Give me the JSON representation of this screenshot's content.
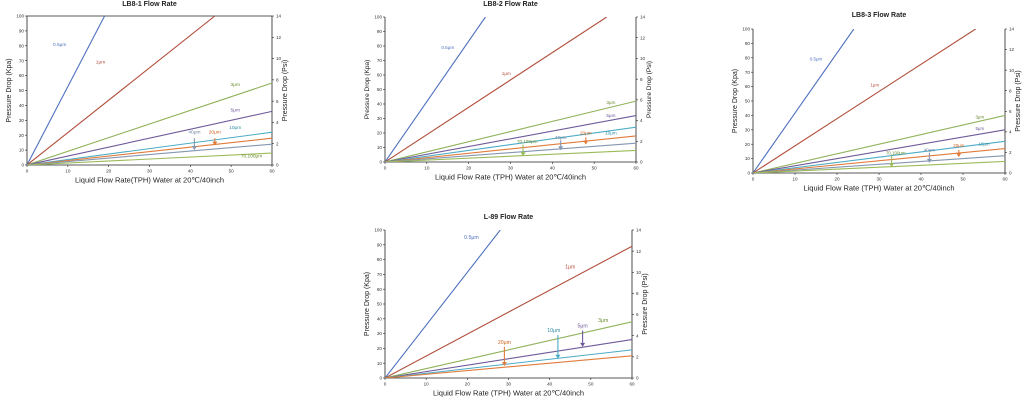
{
  "chart_data": [
    {
      "type": "line",
      "title": "LB8-1 Flow Rate",
      "xlabel": "Liquid Flow Rate(TPH) Water at 20℃/40inch",
      "ylabel": "Pressure Drop (Kpa)",
      "y2label": "Pressure Drop (Psi)",
      "xlim": [
        0,
        60
      ],
      "ylim": [
        0,
        100
      ],
      "y2lim": [
        0,
        14
      ],
      "xticks": [
        "0",
        "10",
        "20",
        "30",
        "40",
        "50",
        "60"
      ],
      "yticks": [
        "0",
        "10",
        "20",
        "30",
        "40",
        "50",
        "60",
        "70",
        "80",
        "90",
        "100"
      ],
      "y2ticks": [
        "0",
        "2",
        "4",
        "6",
        "8",
        "10",
        "12",
        "14"
      ],
      "grid": false,
      "series": [
        {
          "name": "0.5μm",
          "color": "#4f71be",
          "x": [
            0,
            19
          ],
          "y": [
            0,
            100
          ]
        },
        {
          "name": "1μm",
          "color": "#b14e3c",
          "x": [
            0,
            46
          ],
          "y": [
            0,
            100
          ]
        },
        {
          "name": "3μm",
          "color": "#90b25a",
          "x": [
            0,
            60
          ],
          "y": [
            0,
            55
          ]
        },
        {
          "name": "5μm",
          "color": "#6e5a99",
          "x": [
            0,
            60
          ],
          "y": [
            0,
            36
          ]
        },
        {
          "name": "10μm",
          "color": "#4bacc6",
          "x": [
            0,
            60
          ],
          "y": [
            0,
            22
          ]
        },
        {
          "name": "20μm",
          "color": "#e07b39",
          "x": [
            0,
            60
          ],
          "y": [
            0,
            18
          ]
        },
        {
          "name": "40μm",
          "color": "#8497b0",
          "x": [
            0,
            60
          ],
          "y": [
            0,
            14
          ]
        },
        {
          "name": "70,100μm",
          "color": "#9bbb59",
          "x": [
            0,
            60
          ],
          "y": [
            0,
            8
          ]
        }
      ],
      "annotations": [
        {
          "text": "0.5μm",
          "color": "#4f71be",
          "x": 8,
          "y": 80
        },
        {
          "text": "1μm",
          "color": "#b14e3c",
          "x": 18,
          "y": 68
        },
        {
          "text": "3μm",
          "color": "#6a8c2e",
          "x": 51,
          "y": 53
        },
        {
          "text": "5μm",
          "color": "#6e5a99",
          "x": 51,
          "y": 36
        },
        {
          "text": "10μm",
          "color": "#2d8aa5",
          "x": 51,
          "y": 24
        },
        {
          "text": "20μm",
          "color": "#d0601c",
          "x": 46,
          "y": 21
        },
        {
          "text": "40μm",
          "color": "#6b7f9e",
          "x": 41,
          "y": 21
        },
        {
          "text": "70,100μm",
          "color": "#6a8c2e",
          "x": 55,
          "y": 5
        }
      ],
      "arrows": [
        {
          "color": "#8497b0",
          "x": 41,
          "y_from": 18,
          "y_to": 10
        },
        {
          "color": "#e07b39",
          "x": 46,
          "y_from": 18,
          "y_to": 13
        }
      ]
    },
    {
      "type": "line",
      "title": "LB8-2 Flow Rate",
      "xlabel": "Liquid Flow Rate (TPH) Water at 20℃/40inch",
      "ylabel": "Pressure Drop (Kpa)",
      "y2label": "Pressure Drop (Psi)",
      "xlim": [
        0,
        60
      ],
      "ylim": [
        0,
        100
      ],
      "y2lim": [
        0,
        14
      ],
      "xticks": [
        "0",
        "10",
        "20",
        "30",
        "40",
        "50",
        "60"
      ],
      "yticks": [
        "0",
        "10",
        "20",
        "30",
        "40",
        "50",
        "60",
        "70",
        "80",
        "90",
        "100"
      ],
      "y2ticks": [
        "0",
        "2",
        "4",
        "6",
        "8",
        "10",
        "12",
        "14"
      ],
      "grid": false,
      "series": [
        {
          "name": "0.5μm",
          "color": "#4f71be",
          "x": [
            0,
            24
          ],
          "y": [
            0,
            100
          ]
        },
        {
          "name": "1μm",
          "color": "#b14e3c",
          "x": [
            0,
            53
          ],
          "y": [
            0,
            100
          ]
        },
        {
          "name": "3μm",
          "color": "#90b25a",
          "x": [
            0,
            60
          ],
          "y": [
            0,
            42
          ]
        },
        {
          "name": "5μm",
          "color": "#6e5a99",
          "x": [
            0,
            60
          ],
          "y": [
            0,
            32
          ]
        },
        {
          "name": "10μm",
          "color": "#4bacc6",
          "x": [
            0,
            60
          ],
          "y": [
            0,
            24
          ]
        },
        {
          "name": "20μm",
          "color": "#e07b39",
          "x": [
            0,
            60
          ],
          "y": [
            0,
            18
          ]
        },
        {
          "name": "40μm",
          "color": "#8497b0",
          "x": [
            0,
            60
          ],
          "y": [
            0,
            13
          ]
        },
        {
          "name": "70,100μm",
          "color": "#9bbb59",
          "x": [
            0,
            60
          ],
          "y": [
            0,
            8
          ]
        }
      ],
      "annotations": [
        {
          "text": "0.5μm",
          "color": "#4f71be",
          "x": 15,
          "y": 78
        },
        {
          "text": "1μm",
          "color": "#b14e3c",
          "x": 29,
          "y": 60
        },
        {
          "text": "3μm",
          "color": "#6a8c2e",
          "x": 54,
          "y": 40
        },
        {
          "text": "5μm",
          "color": "#6e5a99",
          "x": 54,
          "y": 31
        },
        {
          "text": "10μm",
          "color": "#2d8aa5",
          "x": 54,
          "y": 19
        },
        {
          "text": "20μm",
          "color": "#d0601c",
          "x": 48,
          "y": 19
        },
        {
          "text": "40μm",
          "color": "#6b7f9e",
          "x": 42,
          "y": 16
        },
        {
          "text": "70,100μm",
          "color": "#6a8c2e",
          "x": 34,
          "y": 13
        }
      ],
      "arrows": [
        {
          "color": "#8497b0",
          "x": 42,
          "y_from": 15,
          "y_to": 8
        },
        {
          "color": "#e07b39",
          "x": 48,
          "y_from": 17,
          "y_to": 12
        },
        {
          "color": "#9bbb59",
          "x": 33,
          "y_from": 12,
          "y_to": 4
        }
      ]
    },
    {
      "type": "line",
      "title": "LB8-3 Flow Rate",
      "xlabel": "Liquid Flow Rate (TPH) Water at 20℃/40inch",
      "ylabel": "Pressure Drop (Kpa)",
      "y2label": "Pressure Drop (Psi)",
      "xlim": [
        0,
        60
      ],
      "ylim": [
        0,
        100
      ],
      "y2lim": [
        0,
        14
      ],
      "xticks": [
        "0",
        "10",
        "20",
        "30",
        "40",
        "50",
        "60"
      ],
      "yticks": [
        "0",
        "10",
        "20",
        "30",
        "40",
        "50",
        "60",
        "70",
        "80",
        "90",
        "100"
      ],
      "y2ticks": [
        "0",
        "2",
        "4",
        "6",
        "8",
        "10",
        "12",
        "14"
      ],
      "grid": false,
      "series": [
        {
          "name": "0.5μm",
          "color": "#4f71be",
          "x": [
            0,
            24
          ],
          "y": [
            0,
            100
          ]
        },
        {
          "name": "1μm",
          "color": "#b14e3c",
          "x": [
            0,
            53
          ],
          "y": [
            0,
            100
          ]
        },
        {
          "name": "3μm",
          "color": "#90b25a",
          "x": [
            0,
            60
          ],
          "y": [
            0,
            40
          ]
        },
        {
          "name": "5μm",
          "color": "#6e5a99",
          "x": [
            0,
            60
          ],
          "y": [
            0,
            30
          ]
        },
        {
          "name": "10μm",
          "color": "#4bacc6",
          "x": [
            0,
            60
          ],
          "y": [
            0,
            22
          ]
        },
        {
          "name": "20μm",
          "color": "#e07b39",
          "x": [
            0,
            60
          ],
          "y": [
            0,
            17
          ]
        },
        {
          "name": "40μm",
          "color": "#8497b0",
          "x": [
            0,
            60
          ],
          "y": [
            0,
            12
          ]
        },
        {
          "name": "70,100μm",
          "color": "#9bbb59",
          "x": [
            0,
            60
          ],
          "y": [
            0,
            8
          ]
        }
      ],
      "annotations": [
        {
          "text": "0.5μm",
          "color": "#4f71be",
          "x": 15,
          "y": 78
        },
        {
          "text": "1μm",
          "color": "#b14e3c",
          "x": 29,
          "y": 60
        },
        {
          "text": "3μm",
          "color": "#6a8c2e",
          "x": 54,
          "y": 38
        },
        {
          "text": "5μm",
          "color": "#6e5a99",
          "x": 54,
          "y": 30
        },
        {
          "text": "10μm",
          "color": "#2d8aa5",
          "x": 55,
          "y": 19
        },
        {
          "text": "20μm",
          "color": "#d0601c",
          "x": 49,
          "y": 18
        },
        {
          "text": "40μm",
          "color": "#6b7f9e",
          "x": 42,
          "y": 15
        },
        {
          "text": "70,100μm",
          "color": "#6a8c2e",
          "x": 34,
          "y": 13
        }
      ],
      "arrows": [
        {
          "color": "#8497b0",
          "x": 42,
          "y_from": 14,
          "y_to": 7
        },
        {
          "color": "#e07b39",
          "x": 49,
          "y_from": 16,
          "y_to": 11
        },
        {
          "color": "#9bbb59",
          "x": 33,
          "y_from": 12,
          "y_to": 4
        }
      ]
    },
    {
      "type": "line",
      "title": "L-89 Flow Rate",
      "xlabel": "Liquid Flow Rate (TPH) Water at 20℃/40inch",
      "ylabel": "Pressure Drop (Kpa)",
      "y2label": "Pressure Drop (Psi)",
      "xlim": [
        0,
        60
      ],
      "ylim": [
        0,
        100
      ],
      "y2lim": [
        0,
        14
      ],
      "xticks": [
        "0",
        "10",
        "20",
        "30",
        "40",
        "50",
        "60"
      ],
      "yticks": [
        "0",
        "10",
        "20",
        "30",
        "40",
        "50",
        "60",
        "70",
        "80",
        "90",
        "100"
      ],
      "y2ticks": [
        "0",
        "2",
        "4",
        "6",
        "8",
        "10",
        "12",
        "14"
      ],
      "grid": false,
      "series": [
        {
          "name": "0.5μm",
          "color": "#4f71be",
          "x": [
            0,
            28
          ],
          "y": [
            0,
            100
          ]
        },
        {
          "name": "1μm",
          "color": "#b14e3c",
          "x": [
            0,
            60
          ],
          "y": [
            0,
            89
          ]
        },
        {
          "name": "3μm",
          "color": "#90b25a",
          "x": [
            0,
            60
          ],
          "y": [
            0,
            38
          ]
        },
        {
          "name": "5μm",
          "color": "#6e5a99",
          "x": [
            0,
            60
          ],
          "y": [
            0,
            26
          ]
        },
        {
          "name": "10μm",
          "color": "#4bacc6",
          "x": [
            0,
            60
          ],
          "y": [
            0,
            19
          ]
        },
        {
          "name": "20μm",
          "color": "#e07b39",
          "x": [
            0,
            60
          ],
          "y": [
            0,
            15
          ]
        }
      ],
      "annotations": [
        {
          "text": "0.5μm",
          "color": "#4f71be",
          "x": 21,
          "y": 94
        },
        {
          "text": "1μm",
          "color": "#b14e3c",
          "x": 45,
          "y": 74
        },
        {
          "text": "3μm",
          "color": "#6a8c2e",
          "x": 53,
          "y": 38
        },
        {
          "text": "5μm",
          "color": "#6e5a99",
          "x": 48,
          "y": 34
        },
        {
          "text": "10μm",
          "color": "#2d8aa5",
          "x": 41,
          "y": 31
        },
        {
          "text": "20μm",
          "color": "#d0601c",
          "x": 29,
          "y": 23
        }
      ],
      "arrows": [
        {
          "color": "#6e5a99",
          "x": 48,
          "y_from": 32,
          "y_to": 21
        },
        {
          "color": "#4bacc6",
          "x": 42,
          "y_from": 29,
          "y_to": 13
        },
        {
          "color": "#e07b39",
          "x": 29,
          "y_from": 21,
          "y_to": 8
        }
      ]
    }
  ]
}
